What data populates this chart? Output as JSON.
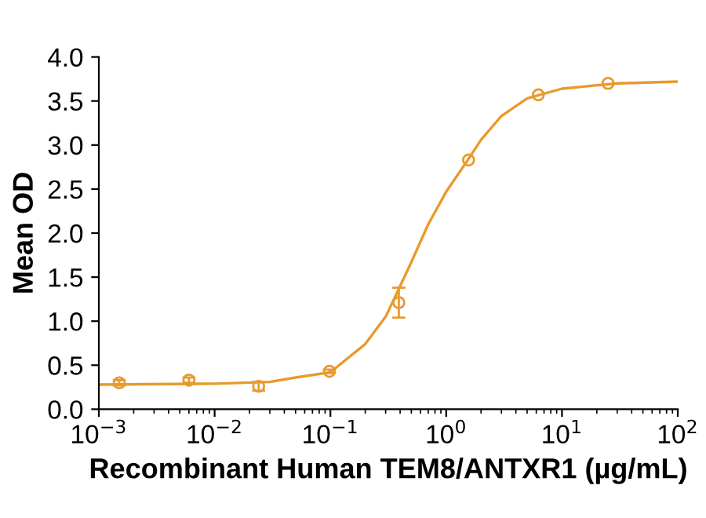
{
  "chart_data": {
    "type": "scatter",
    "xlabel": "Recombinant Human TEM8/ANTXR1 (µg/mL)",
    "ylabel": "Mean OD",
    "log": "x",
    "xlim": [
      0.001,
      100
    ],
    "xticks": [
      {
        "value": 0.001,
        "label": "10$^{−3}$"
      },
      {
        "value": 0.01,
        "label": "10$^{−2}$"
      },
      {
        "value": 0.1,
        "label": "10$^{−1}$"
      },
      {
        "value": 1,
        "label": "10$^{0}$"
      },
      {
        "value": 10,
        "label": "10$^{1}$"
      },
      {
        "value": 100,
        "label": "10$^{2}$"
      }
    ],
    "ylim": [
      0,
      4
    ],
    "yticks": [
      {
        "value": 0,
        "label": "0.0"
      },
      {
        "value": 0.5,
        "label": "0.5"
      },
      {
        "value": 1,
        "label": "1.0"
      },
      {
        "value": 1.5,
        "label": "1.5"
      },
      {
        "value": 2,
        "label": "2.0"
      },
      {
        "value": 2.5,
        "label": "2.5"
      },
      {
        "value": 3,
        "label": "3.0"
      },
      {
        "value": 3.5,
        "label": "3.5"
      },
      {
        "value": 4,
        "label": "4.0"
      }
    ],
    "grid": false,
    "series": [
      {
        "color": "#e89a2c",
        "marker": "circle",
        "x": [
          0.0015,
          0.006,
          0.024,
          0.098,
          0.39,
          1.56,
          6.25,
          25
        ],
        "values": [
          0.3,
          0.33,
          0.26,
          0.43,
          1.21,
          2.83,
          3.57,
          3.7
        ],
        "errors": [
          0.03,
          0.03,
          0.05,
          0.02,
          0.17,
          null,
          null,
          null
        ]
      },
      {
        "type": "line",
        "color": "#e89a2c",
        "marker": "none",
        "line_style": "solid",
        "x": [
          0.001,
          0.01,
          0.03,
          0.05,
          0.1,
          0.2,
          0.3,
          0.5,
          0.7,
          1,
          1.5,
          2,
          3,
          5,
          10,
          30,
          100
        ],
        "values": [
          0.28,
          0.29,
          0.31,
          0.36,
          0.42,
          0.74,
          1.05,
          1.67,
          2.1,
          2.47,
          2.81,
          3.06,
          3.33,
          3.53,
          3.64,
          3.7,
          3.72
        ]
      }
    ]
  }
}
